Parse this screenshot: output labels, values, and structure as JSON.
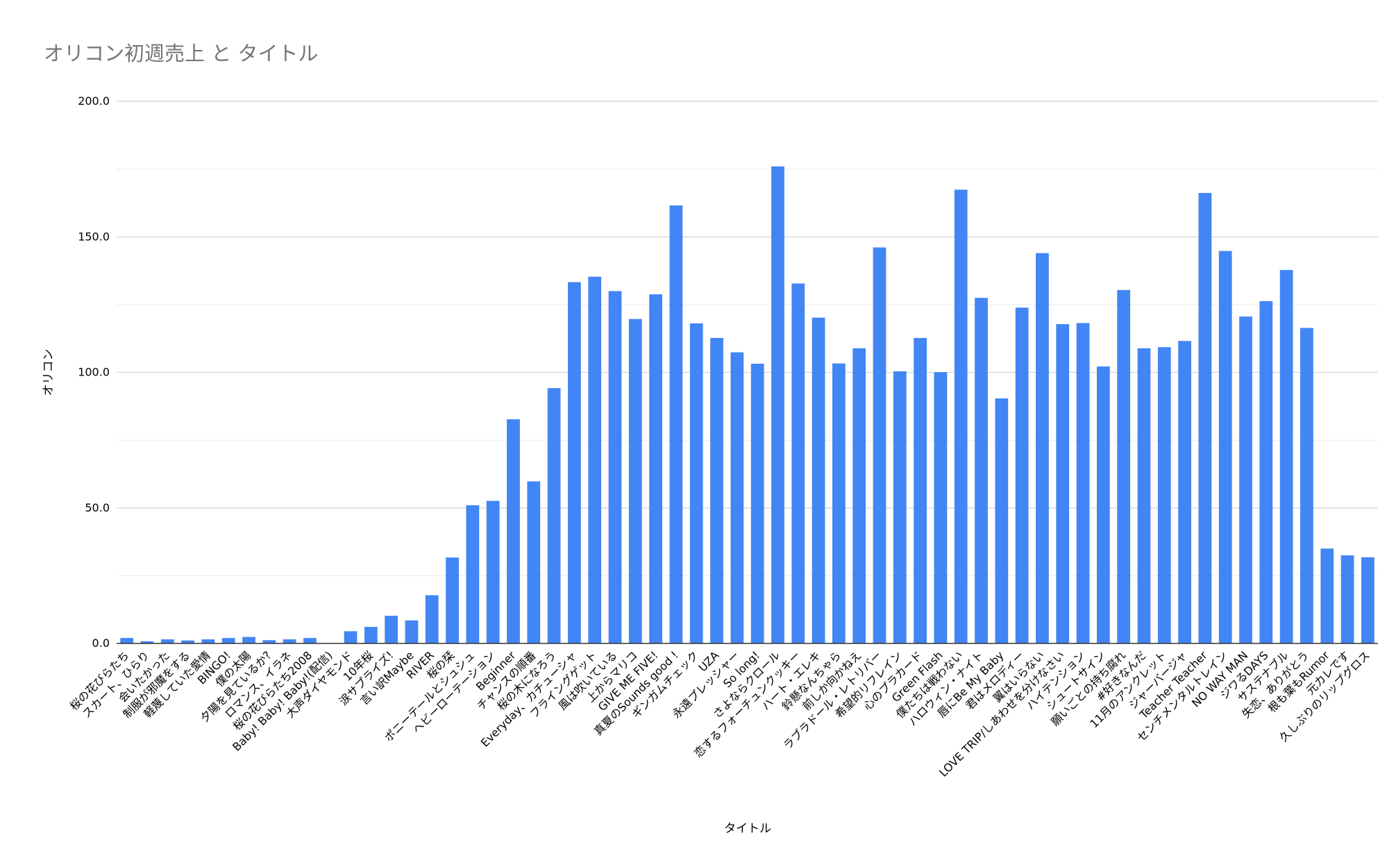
{
  "chart_data": {
    "type": "bar",
    "title": "オリコン初週売上 と タイトル",
    "xlabel": "タイトル",
    "ylabel": "オリコン",
    "ylim": [
      0,
      200
    ],
    "yticks": [
      "0.0",
      "50.0",
      "100.0",
      "150.0",
      "200.0"
    ],
    "grid": true,
    "legend": "none",
    "bar_color": "#4285f4",
    "categories": [
      "桜の花びらたち",
      "スカート、ひらり",
      "会いたかった",
      "制服が邪魔をする",
      "軽蔑していた愛情",
      "BINGO!",
      "僕の太陽",
      "夕陽を見ているか?",
      "ロマンス、イラネ",
      "桜の花びらたち2008",
      "Baby! Baby! Baby!(配信)",
      "大声ダイヤモンド",
      "10年桜",
      "涙サプライズ!",
      "言い訳Maybe",
      "RIVER",
      "桜の栞",
      "ポニーテールとシュシュ",
      "ヘビーローテーション",
      "Beginner",
      "チャンスの順番",
      "桜の木になろう",
      "Everyday、カチューシャ",
      "フライングゲット",
      "風は吹いている",
      "上からマリコ",
      "GIVE ME FIVE!",
      "真夏のSounds good !",
      "ギンガムチェック",
      "UZA",
      "永遠プレッシャー",
      "So long!",
      "さよならクロール",
      "恋するフォーチュンクッキー",
      "ハート・エレキ",
      "鈴懸なんちゃら",
      "前しか向かねえ",
      "ラブラドール・レトリバー",
      "希望的リフレイン",
      "心のプラカード",
      "Green Flash",
      "僕たちは戦わない",
      "ハロウィン・ナイト",
      "唇にBe My Baby",
      "君はメロディー",
      "翼はいらない",
      "LOVE TRIP/しあわせを分けなさい",
      "ハイテンション",
      "シュートサイン",
      "願いごとの持ち腐れ",
      "#好きなんだ",
      "11月のアンクレット",
      "ジャーバージャ",
      "Teacher Teacher",
      "センチメンタルトレイン",
      "NO WAY MAN",
      "ジワるDAYS",
      "サステナブル",
      "失恋、ありがとう",
      "根も葉もRumor",
      "元カレです",
      "久しぶりのリップグロス"
    ],
    "values": [
      2.0,
      0.8,
      1.5,
      1.1,
      1.5,
      2.0,
      2.4,
      1.2,
      1.5,
      2.0,
      0,
      4.5,
      6.1,
      10.2,
      8.5,
      17.8,
      31.7,
      51.0,
      52.6,
      82.7,
      59.8,
      94.2,
      133.3,
      135.3,
      130.0,
      119.7,
      128.8,
      161.6,
      118.1,
      112.7,
      107.4,
      103.2,
      176.0,
      132.8,
      120.2,
      103.3,
      108.9,
      146.1,
      100.4,
      112.7,
      100.1,
      167.4,
      127.5,
      90.4,
      123.9,
      144.0,
      117.8,
      118.2,
      102.2,
      130.4,
      108.9,
      109.3,
      111.6,
      166.2,
      144.8,
      120.6,
      126.3,
      137.8,
      116.4,
      35.0,
      32.5,
      31.8
    ]
  }
}
